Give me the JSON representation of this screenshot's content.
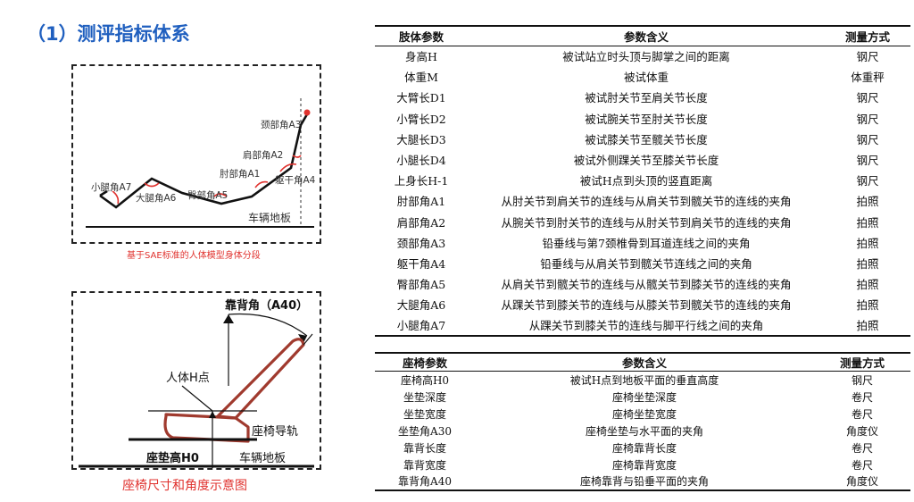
{
  "title": "（1）测评指标体系",
  "diagram1": {
    "labels": {
      "neck": "颈部角A3",
      "shoulder": "肩部角A2",
      "elbow": "肘部角A1",
      "trunk": "躯干角A4",
      "calf": "小腿角A7",
      "thigh": "大腿角A6",
      "hip": "臀部角A5",
      "floor": "车辆地板"
    },
    "caption": "基于SAE标准的人体模型身体分段"
  },
  "diagram2": {
    "labels": {
      "backrest": "靠背角（A40）",
      "hpoint": "人体H点",
      "rail": "座椅导轨",
      "seat_height": "座垫高H0",
      "floor": "车辆地板"
    },
    "caption": "座椅尺寸和角度示意图"
  },
  "body_table": {
    "headers": [
      "肢体参数",
      "参数含义",
      "测量方式"
    ],
    "rows": [
      [
        "身高H",
        "被试站立时头顶与脚掌之间的距离",
        "钢尺"
      ],
      [
        "体重M",
        "被试体重",
        "体重秤"
      ],
      [
        "大臂长D1",
        "被试肘关节至肩关节长度",
        "钢尺"
      ],
      [
        "小臂长D2",
        "被试腕关节至肘关节长度",
        "钢尺"
      ],
      [
        "大腿长D3",
        "被试膝关节至髋关节长度",
        "钢尺"
      ],
      [
        "小腿长D4",
        "被试外侧踝关节至膝关节长度",
        "钢尺"
      ],
      [
        "上身长H-1",
        "被试H点到头顶的竖直距离",
        "钢尺"
      ],
      [
        "肘部角A1",
        "从肘关节到肩关节的连线与从肩关节到髋关节的连线的夹角",
        "拍照"
      ],
      [
        "肩部角A2",
        "从腕关节到肘关节的连线与从肘关节到肩关节的连线的夹角",
        "拍照"
      ],
      [
        "颈部角A3",
        "铅垂线与第7颈椎骨到耳道连线之间的夹角",
        "拍照"
      ],
      [
        "躯干角A4",
        "铅垂线与从肩关节到髋关节连线之间的夹角",
        "拍照"
      ],
      [
        "臀部角A5",
        "从肩关节到髋关节的连线与从髋关节到膝关节的连线的夹角",
        "拍照"
      ],
      [
        "大腿角A6",
        "从踝关节到膝关节的连线与从膝关节到髋关节的连线的夹角",
        "拍照"
      ],
      [
        "小腿角A7",
        "从踝关节到膝关节的连线与脚平行线之间的夹角",
        "拍照"
      ]
    ]
  },
  "seat_table": {
    "headers": [
      "座椅参数",
      "参数含义",
      "测量方式"
    ],
    "rows": [
      [
        "座椅高H0",
        "被试H点到地板平面的垂直高度",
        "钢尺"
      ],
      [
        "坐垫深度",
        "座椅坐垫深度",
        "卷尺"
      ],
      [
        "坐垫宽度",
        "座椅坐垫宽度",
        "卷尺"
      ],
      [
        "坐垫角A30",
        "座椅坐垫与水平面的夹角",
        "角度仪"
      ],
      [
        "靠背长度",
        "座椅靠背长度",
        "卷尺"
      ],
      [
        "靠背宽度",
        "座椅靠背宽度",
        "卷尺"
      ],
      [
        "靠背角A40",
        "座椅靠背与铅垂平面的夹角",
        "角度仪"
      ]
    ]
  },
  "colors": {
    "title": "#1f5fbf",
    "caption": "#e0322e",
    "angle_arc": "#e0322e",
    "seat_outline": "#a03a2e"
  }
}
